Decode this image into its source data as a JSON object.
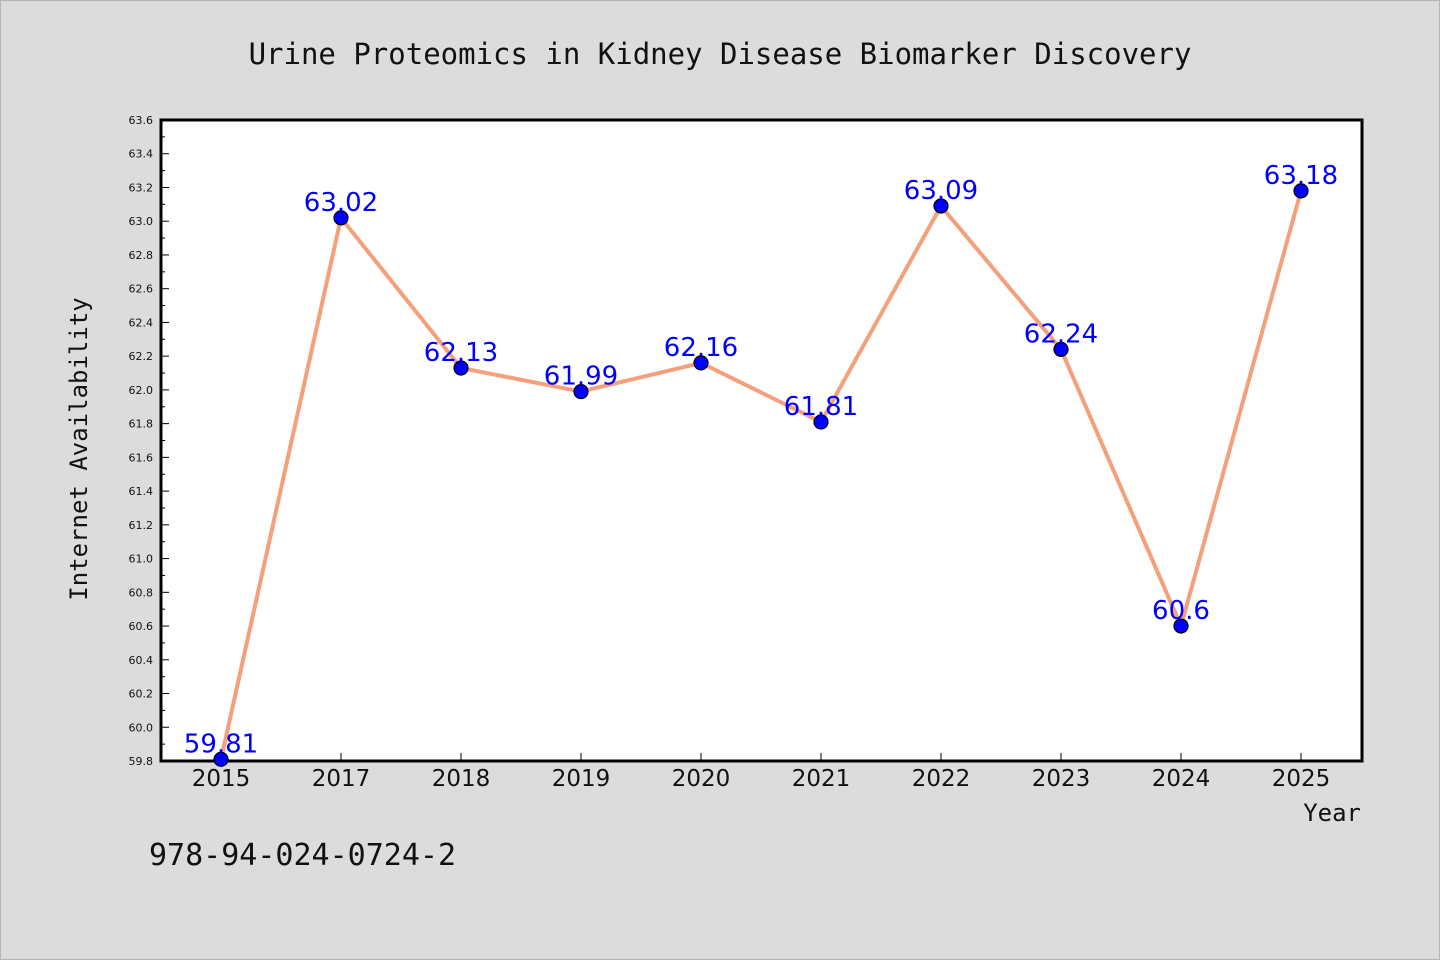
{
  "chart_data": {
    "type": "line",
    "title": "Urine Proteomics in Kidney Disease Biomarker Discovery",
    "xlabel": "Year",
    "ylabel": "Internet Availability",
    "categories": [
      "2015",
      "2017",
      "2018",
      "2019",
      "2020",
      "2021",
      "2022",
      "2023",
      "2024",
      "2025"
    ],
    "series": [
      {
        "values": [
          59.81,
          63.02,
          62.13,
          61.99,
          62.16,
          61.81,
          63.09,
          62.24,
          60.6,
          63.18
        ],
        "data_labels": [
          "59.81",
          "63.02",
          "62.13",
          "61.99",
          "62.16",
          "61.81",
          "63.09",
          "62.24",
          "60.6",
          "63.18"
        ]
      }
    ],
    "ylim": [
      59.8,
      63.6
    ],
    "yticks": [
      "59.8",
      "60.0",
      "60.2",
      "60.4",
      "60.6",
      "60.8",
      "61.0",
      "61.2",
      "61.4",
      "61.6",
      "61.8",
      "62.0",
      "62.2",
      "62.4",
      "62.6",
      "62.8",
      "63.0",
      "63.2",
      "63.4",
      "63.6"
    ],
    "grid": false,
    "legend": "none",
    "colors": {
      "line": "#f4a07a",
      "marker": "#0000ff",
      "data_label": "#0000ff",
      "background": "#dcdcdc",
      "plot_area": "#ffffff"
    }
  },
  "footer_code": "978-94-024-0724-2"
}
